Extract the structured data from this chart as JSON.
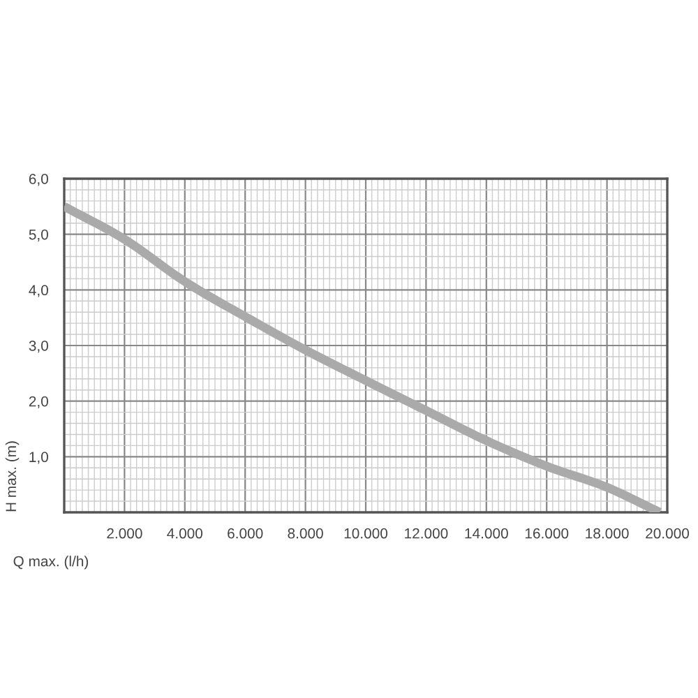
{
  "chart_data": {
    "type": "line",
    "xlabel": "Q max. (l/h)",
    "ylabel": "H max. (m)",
    "x": [
      0,
      2000,
      4000,
      6000,
      8000,
      10000,
      12000,
      14000,
      16000,
      18000,
      19750
    ],
    "series": [
      {
        "color": "#aaaaaa",
        "values": [
          5.5,
          4.91,
          4.15,
          3.52,
          2.92,
          2.37,
          1.83,
          1.29,
          0.83,
          0.45,
          0
        ]
      }
    ],
    "xlim": [
      0,
      20000
    ],
    "ylim": [
      0,
      6
    ],
    "xticks": [
      {
        "value": 2000,
        "label": "2.000"
      },
      {
        "value": 4000,
        "label": "4.000"
      },
      {
        "value": 6000,
        "label": "6.000"
      },
      {
        "value": 8000,
        "label": "8.000"
      },
      {
        "value": 10000,
        "label": "10.000"
      },
      {
        "value": 12000,
        "label": "12.000"
      },
      {
        "value": 14000,
        "label": "14.000"
      },
      {
        "value": 16000,
        "label": "16.000"
      },
      {
        "value": 18000,
        "label": "18.000"
      },
      {
        "value": 20000,
        "label": "20.000"
      }
    ],
    "yticks": [
      {
        "value": 1,
        "label": "1,0"
      },
      {
        "value": 2,
        "label": "2,0"
      },
      {
        "value": 3,
        "label": "3,0"
      },
      {
        "value": 4,
        "label": "4,0"
      },
      {
        "value": 5,
        "label": "5,0"
      },
      {
        "value": 6,
        "label": "6,0"
      }
    ],
    "grid": true,
    "marker": "none",
    "line_style": "solid"
  }
}
